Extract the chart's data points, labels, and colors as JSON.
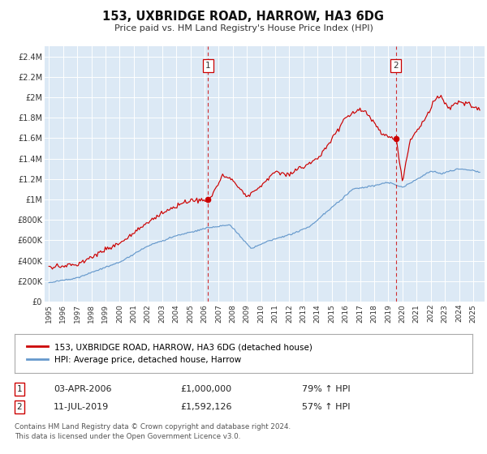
{
  "title": "153, UXBRIDGE ROAD, HARROW, HA3 6DG",
  "subtitle": "Price paid vs. HM Land Registry's House Price Index (HPI)",
  "legend_line1": "153, UXBRIDGE ROAD, HARROW, HA3 6DG (detached house)",
  "legend_line2": "HPI: Average price, detached house, Harrow",
  "ann1_date": "03-APR-2006",
  "ann1_price": "£1,000,000",
  "ann1_hpi": "79% ↑ HPI",
  "ann1_x": 2006.25,
  "ann1_y": 1000000,
  "ann2_date": "11-JUL-2019",
  "ann2_price": "£1,592,126",
  "ann2_hpi": "57% ↑ HPI",
  "ann2_x": 2019.53,
  "ann2_y": 1592126,
  "red_color": "#cc0000",
  "blue_color": "#6699cc",
  "bg_color": "#dce9f5",
  "footer_text": "Contains HM Land Registry data © Crown copyright and database right 2024.\nThis data is licensed under the Open Government Licence v3.0.",
  "ylim_min": 0,
  "ylim_max": 2500000,
  "yticks": [
    0,
    200000,
    400000,
    600000,
    800000,
    1000000,
    1200000,
    1400000,
    1600000,
    1800000,
    2000000,
    2200000,
    2400000
  ],
  "ytick_labels": [
    "£0",
    "£200K",
    "£400K",
    "£600K",
    "£800K",
    "£1M",
    "£1.2M",
    "£1.4M",
    "£1.6M",
    "£1.8M",
    "£2M",
    "£2.2M",
    "£2.4M"
  ],
  "xlim_start": 1994.7,
  "xlim_end": 2025.8,
  "xticks": [
    1995,
    1996,
    1997,
    1998,
    1999,
    2000,
    2001,
    2002,
    2003,
    2004,
    2005,
    2006,
    2007,
    2008,
    2009,
    2010,
    2011,
    2012,
    2013,
    2014,
    2015,
    2016,
    2017,
    2018,
    2019,
    2020,
    2021,
    2022,
    2023,
    2024,
    2025
  ]
}
